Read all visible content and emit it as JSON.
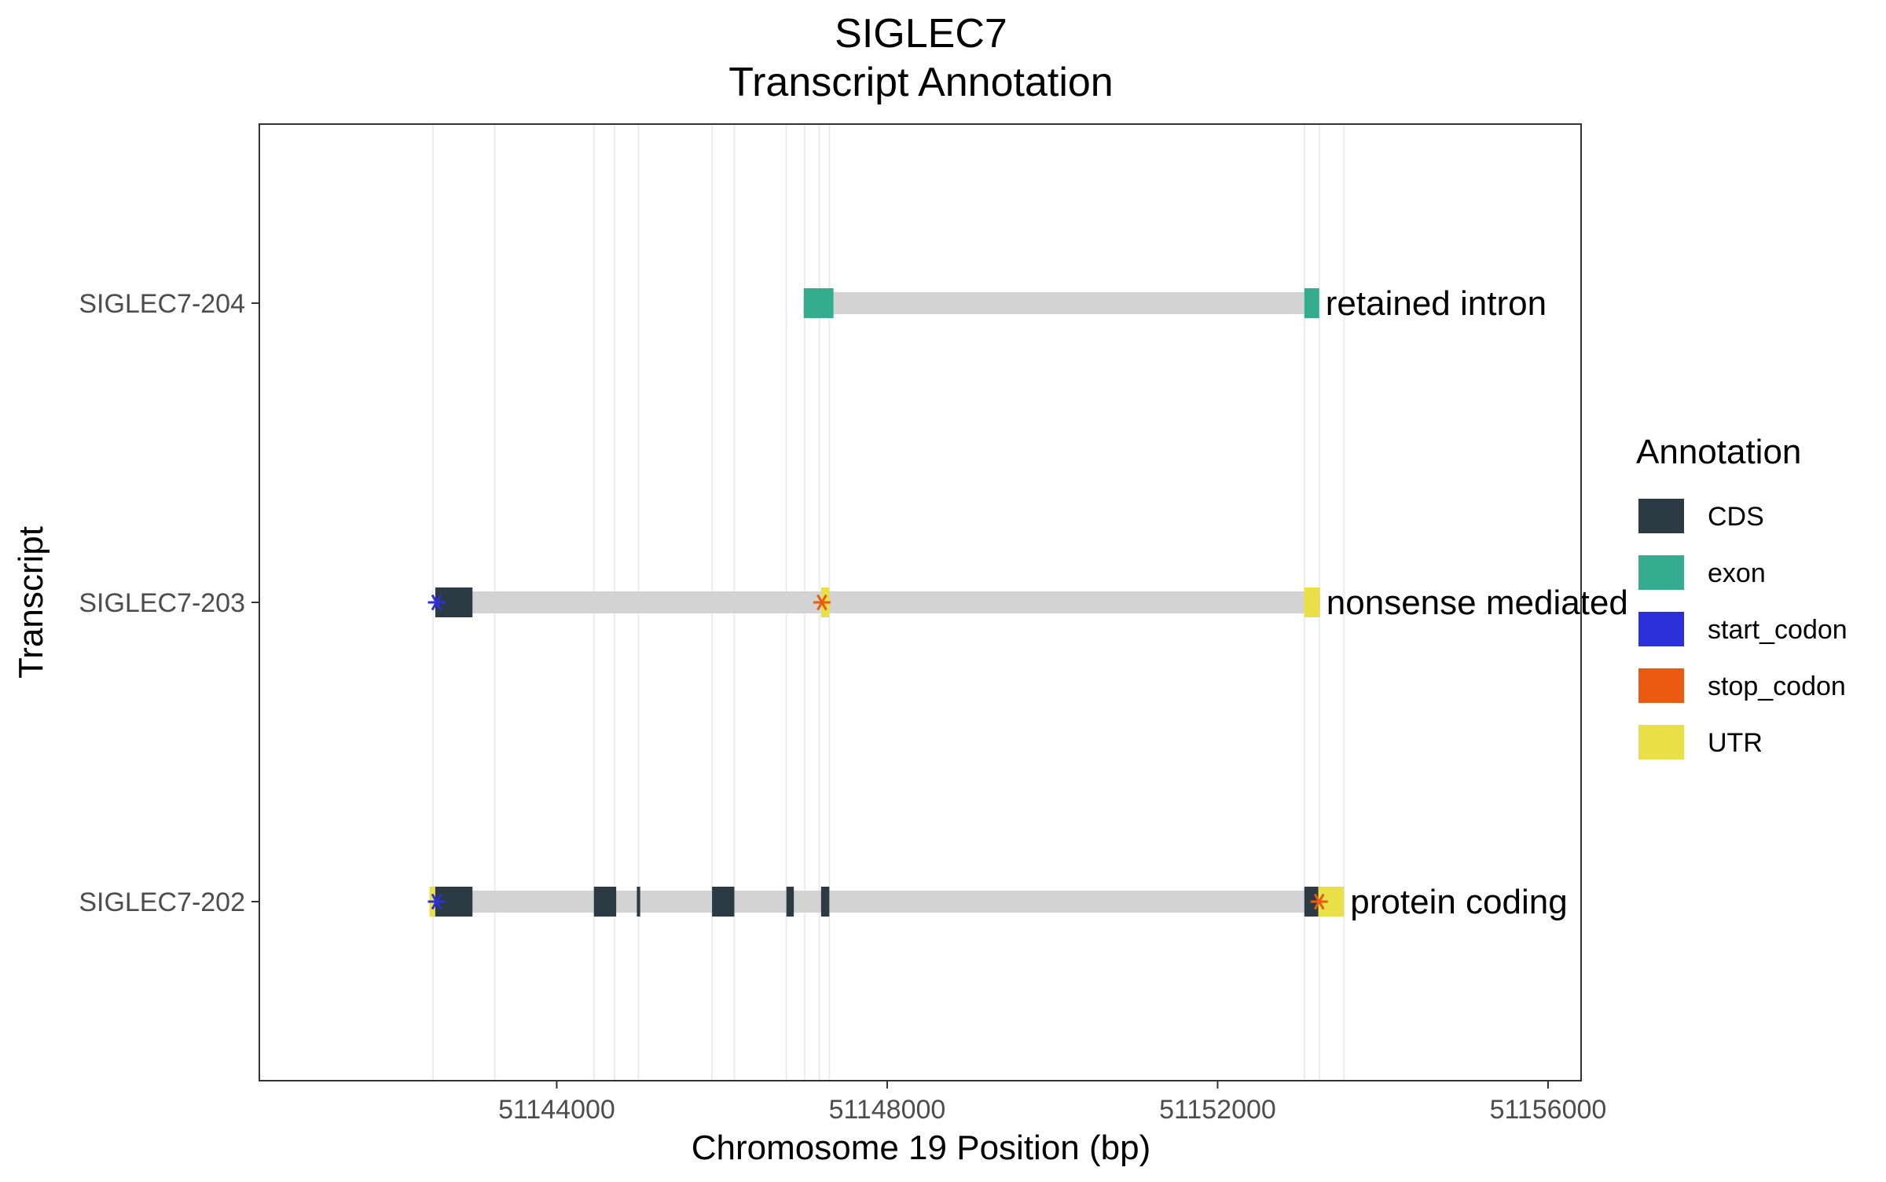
{
  "chart_data": {
    "type": "gene-track",
    "title": "SIGLEC7",
    "subtitle": "Transcript Annotation",
    "xlabel": "Chromosome 19 Position (bp)",
    "ylabel": "Transcript",
    "xlim": [
      51140400,
      51156400
    ],
    "xticks": [
      51144000,
      51148000,
      51152000,
      51156000
    ],
    "xtick_labels": [
      "51144000",
      "51148000",
      "51152000",
      "51156000"
    ],
    "grid_lines_x": [
      51142500,
      51143250,
      51144450,
      51144700,
      51144990,
      51145880,
      51146150,
      51146780,
      51147000,
      51147180,
      51147300,
      51153050,
      51153230,
      51153530
    ],
    "legend": {
      "title": "Annotation",
      "position": "right",
      "items": [
        {
          "key": "CDS",
          "label": "CDS",
          "color": "#2c3a44"
        },
        {
          "key": "exon",
          "label": "exon",
          "color": "#35ab8f"
        },
        {
          "key": "start_codon",
          "label": "start_codon",
          "color": "#2b30d9"
        },
        {
          "key": "stop_codon",
          "label": "stop_codon",
          "color": "#ea5a11"
        },
        {
          "key": "UTR",
          "label": "UTR",
          "color": "#e8e046"
        }
      ]
    },
    "intron_color": "#d3d3d3",
    "transcripts": [
      {
        "name": "SIGLEC7-204",
        "biotype": "retained intron",
        "start": 51146990,
        "end": 51153230,
        "features": [
          {
            "type": "exon",
            "start": 51146990,
            "end": 51147350
          },
          {
            "type": "exon",
            "start": 51153050,
            "end": 51153230
          }
        ],
        "codons": []
      },
      {
        "name": "SIGLEC7-203",
        "biotype": "nonsense mediated",
        "start": 51142530,
        "end": 51153240,
        "features": [
          {
            "type": "CDS",
            "start": 51142530,
            "end": 51142980
          },
          {
            "type": "UTR",
            "start": 51147200,
            "end": 51147300
          },
          {
            "type": "UTR",
            "start": 51153050,
            "end": 51153240
          }
        ],
        "codons": [
          {
            "type": "start_codon",
            "pos": 51142545
          },
          {
            "type": "stop_codon",
            "pos": 51147210
          }
        ]
      },
      {
        "name": "SIGLEC7-202",
        "biotype": "protein coding",
        "start": 51142460,
        "end": 51153530,
        "features": [
          {
            "type": "UTR",
            "start": 51142460,
            "end": 51142530
          },
          {
            "type": "CDS",
            "start": 51142530,
            "end": 51142980
          },
          {
            "type": "CDS",
            "start": 51144450,
            "end": 51144720
          },
          {
            "type": "CDS",
            "start": 51144970,
            "end": 51145010
          },
          {
            "type": "CDS",
            "start": 51145880,
            "end": 51146150
          },
          {
            "type": "CDS",
            "start": 51146780,
            "end": 51146870
          },
          {
            "type": "CDS",
            "start": 51147200,
            "end": 51147300
          },
          {
            "type": "CDS",
            "start": 51153050,
            "end": 51153220
          },
          {
            "type": "UTR",
            "start": 51153220,
            "end": 51153530
          }
        ],
        "codons": [
          {
            "type": "start_codon",
            "pos": 51142545
          },
          {
            "type": "stop_codon",
            "pos": 51153230
          }
        ]
      }
    ]
  }
}
